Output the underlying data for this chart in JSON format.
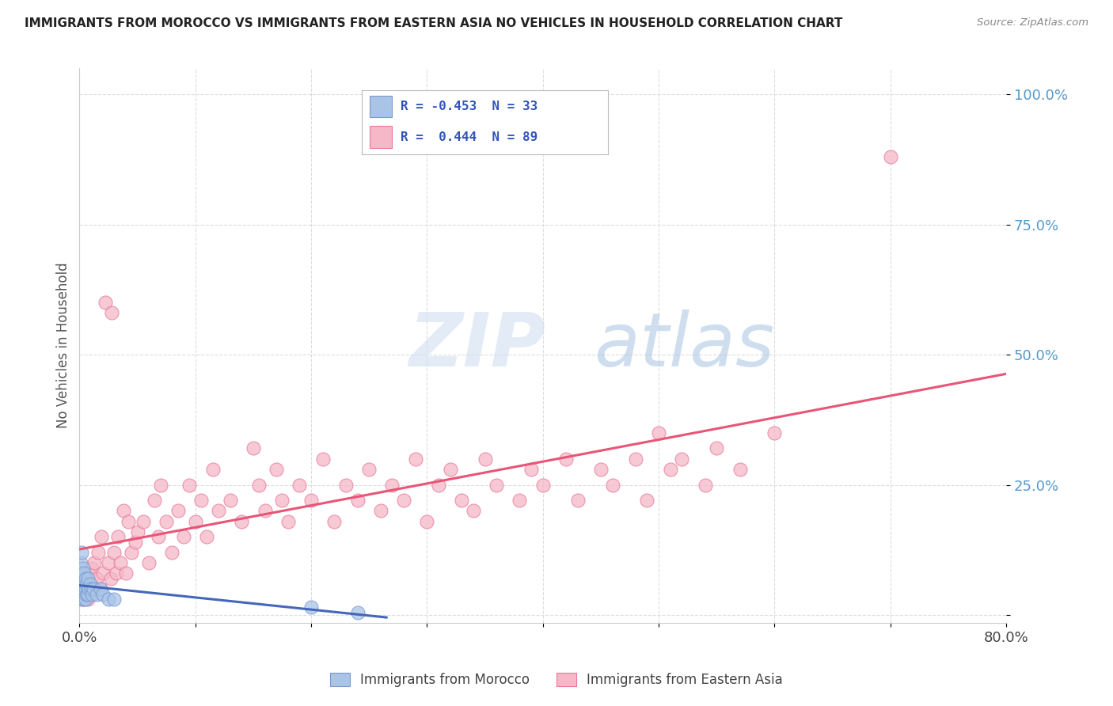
{
  "title": "IMMIGRANTS FROM MOROCCO VS IMMIGRANTS FROM EASTERN ASIA NO VEHICLES IN HOUSEHOLD CORRELATION CHART",
  "source": "Source: ZipAtlas.com",
  "ylabel": "No Vehicles in Household",
  "xmin": 0.0,
  "xmax": 0.8,
  "ymin": -0.015,
  "ymax": 1.05,
  "blue_color": "#aac4e8",
  "pink_color": "#f5b8c8",
  "blue_edge": "#7799cc",
  "pink_edge": "#e87799",
  "blue_line": "#4466bb",
  "pink_line": "#e85577",
  "legend_text_blue": "R = -0.453  N = 33",
  "legend_text_pink": "R =  0.444  N = 89",
  "legend_labels": [
    "Immigrants from Morocco",
    "Immigrants from Eastern Asia"
  ],
  "morocco_x": [
    0.001,
    0.001,
    0.001,
    0.002,
    0.002,
    0.002,
    0.002,
    0.003,
    0.003,
    0.003,
    0.003,
    0.004,
    0.004,
    0.004,
    0.005,
    0.005,
    0.005,
    0.006,
    0.006,
    0.007,
    0.007,
    0.008,
    0.009,
    0.01,
    0.011,
    0.012,
    0.015,
    0.018,
    0.02,
    0.025,
    0.03,
    0.2,
    0.24
  ],
  "morocco_y": [
    0.1,
    0.07,
    0.05,
    0.12,
    0.08,
    0.06,
    0.04,
    0.09,
    0.06,
    0.04,
    0.03,
    0.08,
    0.05,
    0.03,
    0.07,
    0.05,
    0.03,
    0.06,
    0.04,
    0.07,
    0.04,
    0.05,
    0.06,
    0.05,
    0.04,
    0.05,
    0.04,
    0.05,
    0.04,
    0.03,
    0.03,
    0.015,
    0.005
  ],
  "eastern_asia_x": [
    0.002,
    0.003,
    0.004,
    0.005,
    0.006,
    0.007,
    0.008,
    0.009,
    0.01,
    0.011,
    0.012,
    0.013,
    0.015,
    0.016,
    0.018,
    0.019,
    0.02,
    0.022,
    0.025,
    0.027,
    0.028,
    0.03,
    0.032,
    0.033,
    0.035,
    0.038,
    0.04,
    0.042,
    0.045,
    0.048,
    0.05,
    0.055,
    0.06,
    0.065,
    0.068,
    0.07,
    0.075,
    0.08,
    0.085,
    0.09,
    0.095,
    0.1,
    0.105,
    0.11,
    0.115,
    0.12,
    0.13,
    0.14,
    0.15,
    0.155,
    0.16,
    0.17,
    0.175,
    0.18,
    0.19,
    0.2,
    0.21,
    0.22,
    0.23,
    0.24,
    0.25,
    0.26,
    0.27,
    0.28,
    0.29,
    0.3,
    0.31,
    0.32,
    0.33,
    0.34,
    0.35,
    0.36,
    0.38,
    0.39,
    0.4,
    0.42,
    0.43,
    0.45,
    0.46,
    0.48,
    0.49,
    0.5,
    0.51,
    0.52,
    0.54,
    0.55,
    0.57,
    0.6,
    0.7
  ],
  "eastern_asia_y": [
    0.03,
    0.05,
    0.04,
    0.07,
    0.05,
    0.03,
    0.08,
    0.04,
    0.06,
    0.09,
    0.05,
    0.1,
    0.07,
    0.12,
    0.05,
    0.15,
    0.08,
    0.6,
    0.1,
    0.07,
    0.58,
    0.12,
    0.08,
    0.15,
    0.1,
    0.2,
    0.08,
    0.18,
    0.12,
    0.14,
    0.16,
    0.18,
    0.1,
    0.22,
    0.15,
    0.25,
    0.18,
    0.12,
    0.2,
    0.15,
    0.25,
    0.18,
    0.22,
    0.15,
    0.28,
    0.2,
    0.22,
    0.18,
    0.32,
    0.25,
    0.2,
    0.28,
    0.22,
    0.18,
    0.25,
    0.22,
    0.3,
    0.18,
    0.25,
    0.22,
    0.28,
    0.2,
    0.25,
    0.22,
    0.3,
    0.18,
    0.25,
    0.28,
    0.22,
    0.2,
    0.3,
    0.25,
    0.22,
    0.28,
    0.25,
    0.3,
    0.22,
    0.28,
    0.25,
    0.3,
    0.22,
    0.35,
    0.28,
    0.3,
    0.25,
    0.32,
    0.28,
    0.35,
    0.88
  ]
}
